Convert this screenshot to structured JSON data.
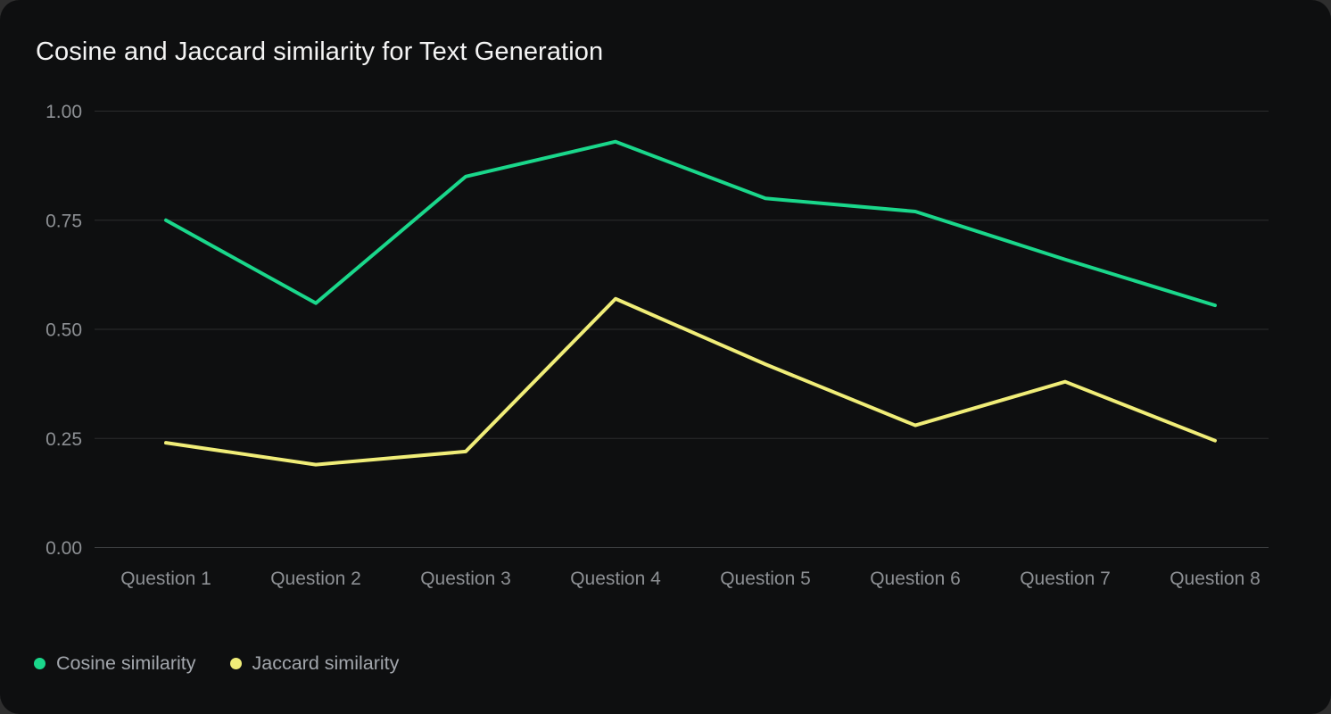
{
  "page": {
    "background": "#2e2e2e",
    "card_background": "#0e0f10"
  },
  "header": {
    "title": "Cosine and Jaccard similarity for Text Generation"
  },
  "chart_data": {
    "type": "line",
    "title": "Cosine and Jaccard similarity for Text Generation",
    "categories": [
      "Question 1",
      "Question 2",
      "Question 3",
      "Question 4",
      "Question 5",
      "Question 6",
      "Question 7",
      "Question 8"
    ],
    "series": [
      {
        "name": "Cosine similarity",
        "color": "#1ad78b",
        "values": [
          0.75,
          0.56,
          0.85,
          0.93,
          0.8,
          0.77,
          0.66,
          0.555
        ]
      },
      {
        "name": "Jaccard similarity",
        "color": "#f0ed78",
        "values": [
          0.24,
          0.19,
          0.22,
          0.57,
          0.42,
          0.28,
          0.38,
          0.245
        ]
      }
    ],
    "y_ticks": [
      {
        "value": 0.0,
        "label": "0.00"
      },
      {
        "value": 0.25,
        "label": "0.25"
      },
      {
        "value": 0.5,
        "label": "0.50"
      },
      {
        "value": 0.75,
        "label": "0.75"
      },
      {
        "value": 1.0,
        "label": "1.00"
      }
    ],
    "ylim": [
      0,
      1
    ],
    "xlabel": "",
    "ylabel": "",
    "grid": "horizontal",
    "legend_position": "bottom-left",
    "colors": {
      "grid_line": "#2c2d2e",
      "axis_base_line": "#3e4042",
      "tick_text": "#8d9094",
      "legend_text": "#a2a6ac",
      "title_text": "#f4f4f4"
    }
  }
}
